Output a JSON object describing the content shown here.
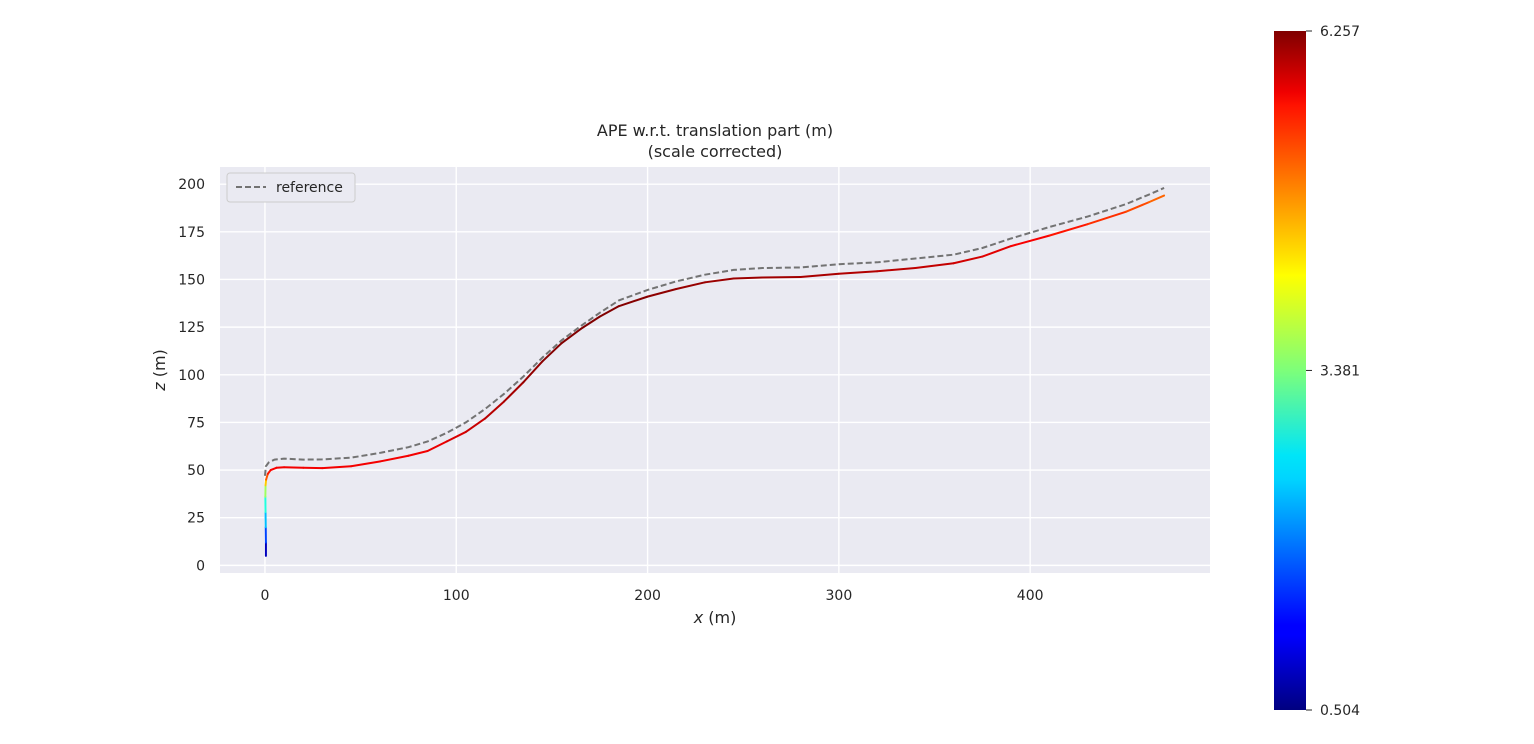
{
  "chart_data": {
    "type": "line",
    "title": "APE w.r.t. translation part (m)",
    "subtitle": "(scale corrected)",
    "xlabel_var": "x",
    "xlabel_unit": " (m)",
    "ylabel_var": "z",
    "ylabel_unit": " (m)",
    "xlim": [
      -23.5,
      494
    ],
    "ylim": [
      -4,
      209
    ],
    "x_ticks": [
      "0",
      "100",
      "200",
      "300",
      "400"
    ],
    "x_tick_values": [
      0,
      100,
      200,
      300,
      400
    ],
    "y_ticks": [
      "0",
      "25",
      "50",
      "75",
      "100",
      "125",
      "150",
      "175",
      "200"
    ],
    "y_tick_values": [
      0,
      25,
      50,
      75,
      100,
      125,
      150,
      175,
      200
    ],
    "grid": true,
    "legend": {
      "placement": "top-left",
      "entries": [
        "reference"
      ]
    },
    "colors": {
      "background": "#EAEAF2",
      "grid": "#FFFFFF",
      "reference": "#737373"
    },
    "series": [
      {
        "name": "reference",
        "style": "dashed",
        "x": [
          0,
          0.5,
          2,
          5,
          10,
          20,
          30,
          45,
          60,
          75,
          85,
          95,
          105,
          115,
          125,
          135,
          145,
          155,
          165,
          175,
          185,
          200,
          215,
          230,
          245,
          260,
          280,
          300,
          320,
          340,
          360,
          375,
          390,
          410,
          430,
          450,
          462,
          470
        ],
        "y": [
          47,
          52,
          54,
          55.5,
          56,
          55.5,
          55.6,
          56.5,
          59,
          62,
          65,
          69.5,
          75,
          82,
          90,
          99,
          109,
          118,
          125.5,
          132.5,
          139,
          144.5,
          149,
          152.5,
          155,
          156,
          156.3,
          158,
          159,
          161,
          163,
          166.5,
          171.5,
          177.5,
          183,
          189.5,
          194.5,
          198
        ]
      },
      {
        "name": "",
        "style": "solid-colormap",
        "x": [
          0.5,
          0.5,
          0.4,
          0.3,
          0.2,
          0.3,
          0.6,
          1.5,
          3,
          6,
          10,
          20,
          30,
          45,
          60,
          75,
          85,
          95,
          105,
          115,
          125,
          135,
          145,
          155,
          165,
          175,
          185,
          200,
          215,
          230,
          245,
          260,
          280,
          300,
          320,
          340,
          360,
          375,
          390,
          410,
          430,
          450,
          462,
          470
        ],
        "y": [
          5,
          12,
          20,
          28,
          36,
          42,
          45,
          48,
          50,
          51.2,
          51.5,
          51.2,
          51,
          52,
          54.5,
          57.5,
          60,
          65,
          70,
          77,
          86,
          96,
          107,
          116.5,
          124,
          130.5,
          136,
          141,
          145,
          148.5,
          150.5,
          151,
          151.3,
          153,
          154.3,
          156,
          158.5,
          162,
          167.5,
          173,
          179,
          185.5,
          190.5,
          194
        ],
        "error": [
          0.504,
          1.2,
          2.0,
          2.6,
          3.1,
          4.0,
          4.8,
          5.3,
          5.5,
          5.6,
          5.6,
          5.6,
          5.6,
          5.6,
          5.6,
          5.6,
          5.6,
          5.7,
          5.8,
          5.9,
          6.0,
          6.1,
          6.2,
          6.25,
          6.257,
          6.257,
          6.25,
          6.2,
          6.15,
          6.1,
          6.1,
          6.1,
          6.05,
          6.0,
          5.95,
          5.9,
          5.85,
          5.75,
          5.65,
          5.5,
          5.35,
          5.2,
          5.05,
          4.9
        ]
      }
    ],
    "colorbar": {
      "colormap": "jet",
      "min": 0.504,
      "max": 6.257,
      "tick_values": [
        6.257,
        3.381,
        0.504
      ],
      "tick_labels": [
        "6.257",
        "3.381",
        "0.504"
      ]
    }
  }
}
